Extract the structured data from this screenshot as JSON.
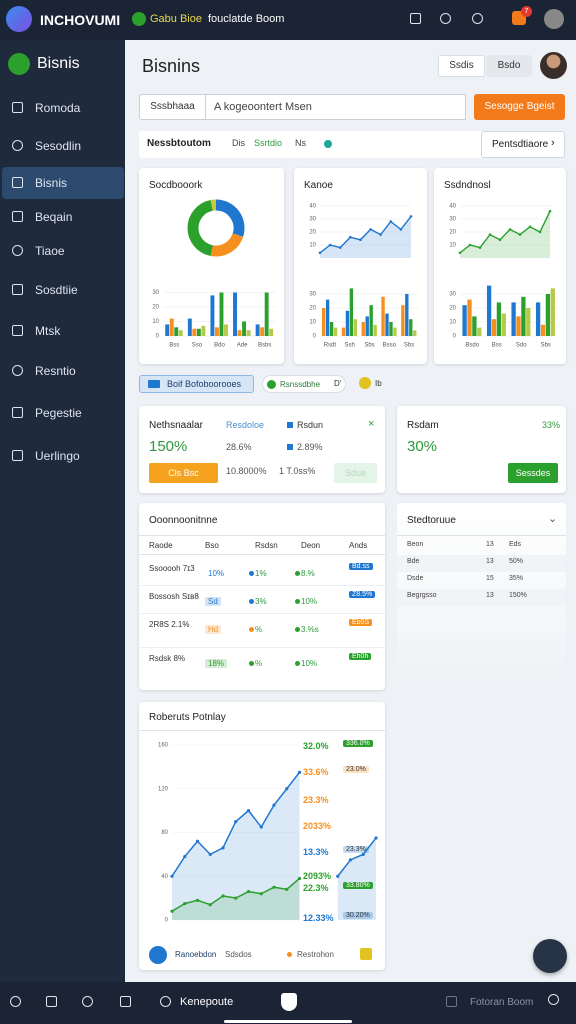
{
  "topbar": {
    "brand": "INCHOVUMI",
    "badge": "Gabu Bioe",
    "subtitle": "fouclatde Boom",
    "notifications": "7"
  },
  "sidebar": {
    "title": "Bisnis",
    "active": 2,
    "items": [
      "Romoda",
      "Sesodlin",
      "Bisnis",
      "Beqain",
      "Tiaoe",
      "Sosdtiie",
      "Mtsk",
      "Resntio",
      "Pegestie",
      "Uerlingo"
    ]
  },
  "header": {
    "title": "Bisnins",
    "buttons": [
      "Ssdis",
      "Bsdo"
    ]
  },
  "search": {
    "button": "Sssbhaaa",
    "placeholder": "A kogeoontert Msen",
    "action": "Sesogge Bgeist"
  },
  "tabs": {
    "items": [
      "Nessbtoutom",
      "Dis",
      "Ssrtdio",
      "Ns"
    ],
    "more": "Pentsdtiaore"
  },
  "cards": [
    {
      "title": "Socdbooork",
      "donut": {
        "type": "pie",
        "values": [
          30,
          23,
          44,
          3
        ],
        "colors": [
          "#1f77d0",
          "#f5901e",
          "#2ca02c",
          "#c9c93a"
        ]
      },
      "bars": {
        "type": "bar",
        "categories": [
          "Bss",
          "Sso",
          "Bdo",
          "Ade",
          "Bsbs"
        ],
        "ylim": [
          0,
          40
        ],
        "yticks": [
          0,
          10,
          20,
          30
        ],
        "series": [
          {
            "color": "#1f77d0",
            "values": [
              8,
              12,
              28,
              30,
              8
            ]
          },
          {
            "color": "#f5901e",
            "values": [
              12,
              5,
              6,
              4,
              6
            ]
          },
          {
            "color": "#2ca02c",
            "values": [
              6,
              5,
              30,
              10,
              30
            ]
          },
          {
            "color": "#b8c94a",
            "values": [
              4,
              7,
              8,
              4,
              5
            ]
          }
        ]
      }
    },
    {
      "title": "Kanoe",
      "line": {
        "type": "line",
        "color": "#1f77d0",
        "area": true,
        "ylim": [
          0,
          40
        ],
        "yticks": [
          10,
          20,
          30,
          40
        ],
        "values": [
          4,
          10,
          8,
          16,
          14,
          22,
          18,
          28,
          22,
          32
        ]
      },
      "bars": {
        "type": "bar",
        "categories": [
          "Rsdt",
          "Ssh",
          "Sbs",
          "Bsso",
          "Sbs"
        ],
        "ylim": [
          0,
          40
        ],
        "yticks": [
          0,
          10,
          20,
          30
        ],
        "series": [
          {
            "color": "#f5901e",
            "values": [
              20,
              6,
              10,
              28,
              22
            ]
          },
          {
            "color": "#1f77d0",
            "values": [
              26,
              18,
              14,
              16,
              30
            ]
          },
          {
            "color": "#2ca02c",
            "values": [
              10,
              34,
              22,
              10,
              12
            ]
          },
          {
            "color": "#b8c94a",
            "values": [
              6,
              12,
              8,
              6,
              4
            ]
          }
        ]
      }
    },
    {
      "title": "Ssdndnosl",
      "line": {
        "type": "line",
        "color": "#2ca02c",
        "area": true,
        "ylim": [
          0,
          40
        ],
        "yticks": [
          10,
          20,
          30,
          40
        ],
        "values": [
          4,
          10,
          8,
          18,
          14,
          22,
          18,
          24,
          20,
          36
        ]
      },
      "bars": {
        "type": "bar",
        "categories": [
          "Bsdo",
          "Bss",
          "Sdo",
          "Sbs"
        ],
        "ylim": [
          0,
          40
        ],
        "yticks": [
          0,
          10,
          20,
          30
        ],
        "series": [
          {
            "color": "#1f77d0",
            "values": [
              22,
              36,
              24,
              24
            ]
          },
          {
            "color": "#f5901e",
            "values": [
              26,
              12,
              14,
              8
            ]
          },
          {
            "color": "#2ca02c",
            "values": [
              14,
              24,
              28,
              30
            ]
          },
          {
            "color": "#b8c94a",
            "values": [
              6,
              16,
              20,
              34
            ]
          }
        ]
      }
    }
  ],
  "chips": [
    "Boif Bofoboorooes",
    "Rsnssdbhe",
    "D'",
    "Ib"
  ],
  "kpis": [
    {
      "title": "Nethsnaalar",
      "value": "150%",
      "sub": [
        {
          "label": "Resdoloe",
          "value": "28.6%"
        },
        {
          "label": "Rsdun",
          "value": "2.89%"
        }
      ],
      "button": "Cls Bsc",
      "foot": [
        "10.8000%",
        "1 T.0ss%"
      ],
      "secondary": "Sdue"
    },
    {
      "title": "Rsdam",
      "badge": "33%",
      "value": "30%",
      "button": "Sessdes"
    }
  ],
  "table": {
    "title": "Ooonnoonitnne",
    "header": [
      "Raode",
      "Bso",
      "Rsdsn",
      "Deon",
      "Ands"
    ],
    "rows": [
      {
        "color": "#1f77d0",
        "cells": [
          "Ssooooh 7ɪ3",
          "10%",
          "1%",
          "8.%",
          "Bd.ss"
        ]
      },
      {
        "color": "#1f77d0",
        "cells": [
          "Bossosh Sɪʙ8",
          "Sd",
          "3%",
          "10%",
          "Z8.5%"
        ]
      },
      {
        "color": "#f5901e",
        "cells": [
          "2R8S 2.1%",
          "Hd",
          "%",
          "3.%s",
          "Eb0S"
        ]
      },
      {
        "color": "#2ca02c",
        "cells": [
          "Rsdsk 8%",
          "18%",
          "%",
          "10%",
          "Eh0h"
        ]
      }
    ]
  },
  "side_list": {
    "title": "Stedtoruue",
    "rows": [
      [
        "Beon",
        "13",
        "Eds"
      ],
      [
        "Bde",
        "13",
        "50%"
      ],
      [
        "Dsde",
        "15",
        "35%"
      ],
      [
        "Begrgsso",
        "13",
        "150%"
      ]
    ]
  },
  "trend": {
    "type": "line",
    "title": "Roberuts Potnlay",
    "xlim": [
      0,
      16
    ],
    "ylim": [
      0,
      160
    ],
    "yticks": [
      0,
      40,
      80,
      120,
      160
    ],
    "series": [
      {
        "color": "#1f77d0",
        "area": true,
        "x": [
          0,
          1,
          2,
          3,
          4,
          5,
          6,
          7,
          8,
          9,
          10
        ],
        "values": [
          40,
          58,
          72,
          60,
          66,
          90,
          100,
          85,
          105,
          120,
          135
        ]
      },
      {
        "color": "#1f77d0",
        "area": true,
        "x": [
          13,
          14,
          15,
          16
        ],
        "values": [
          40,
          55,
          60,
          75
        ]
      },
      {
        "color": "#2ca02c",
        "area": true,
        "x": [
          0,
          1,
          2,
          3,
          4,
          5,
          6,
          7,
          8,
          9,
          10
        ],
        "values": [
          8,
          15,
          18,
          14,
          22,
          20,
          26,
          24,
          30,
          28,
          38
        ]
      }
    ],
    "side_labels": [
      {
        "text": "32.0%",
        "color": "#2ca02c",
        "badge": "336.0%"
      },
      {
        "text": "33.6%",
        "color": "#f5901e",
        "badge": "23.0%"
      },
      {
        "text": "23.3%",
        "color": "#f5901e"
      },
      {
        "text": "2033%",
        "color": "#f5901e"
      },
      {
        "text": "13.3%",
        "color": "#1f77d0",
        "badge": "23.3%"
      },
      {
        "text": "2093%",
        "color": "#2ca02c"
      },
      {
        "text": "22.3%",
        "color": "#2ca02c",
        "badge": "33.80%"
      },
      {
        "text": "12.33%",
        "color": "#1f77d0",
        "badge": "30.20%"
      }
    ],
    "legend": [
      "Ranoebdon",
      "Sdsdos",
      "Restrohon"
    ]
  },
  "bottombar": {
    "label": "Kenepoute",
    "right": "Fotoran Boom"
  }
}
